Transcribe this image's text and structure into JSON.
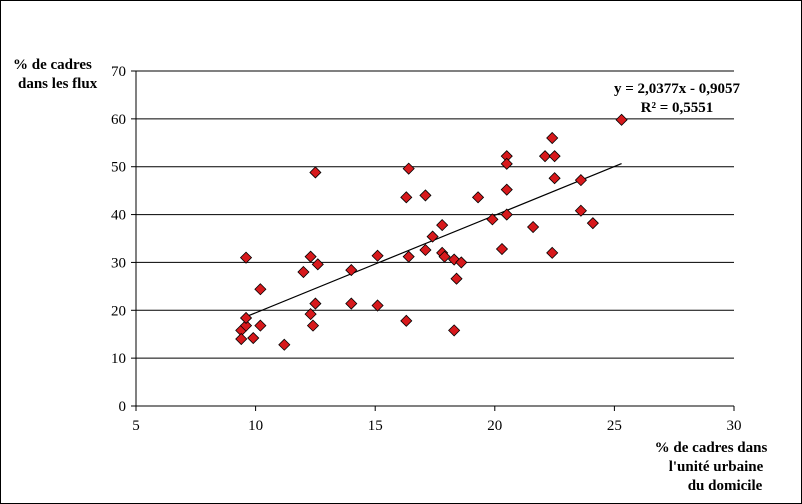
{
  "chart_data": {
    "type": "scatter",
    "ylabel_lines": [
      "% de cadres",
      "dans les flux"
    ],
    "xlabel_lines": [
      "% de cadres dans",
      "l'unité urbaine",
      "du domicile"
    ],
    "xlim": [
      5,
      30
    ],
    "ylim": [
      0,
      70
    ],
    "x_ticks": [
      5,
      10,
      15,
      20,
      25,
      30
    ],
    "y_ticks": [
      0,
      10,
      20,
      30,
      40,
      50,
      60,
      70
    ],
    "grid": "horizontal",
    "marker_color": "#d7191c",
    "equation": "y = 2,0377x - 0,9057",
    "r2": "R² = 0,5551",
    "trendline": {
      "slope": 2.0377,
      "intercept": -0.9057,
      "x_range": [
        9.6,
        25.3
      ]
    },
    "points": [
      [
        9.4,
        15.8
      ],
      [
        9.4,
        14.0
      ],
      [
        9.6,
        16.8
      ],
      [
        9.6,
        18.4
      ],
      [
        9.6,
        31.0
      ],
      [
        9.9,
        14.2
      ],
      [
        10.2,
        24.4
      ],
      [
        10.2,
        16.8
      ],
      [
        11.2,
        12.8
      ],
      [
        12.0,
        28.0
      ],
      [
        12.3,
        31.2
      ],
      [
        12.3,
        19.2
      ],
      [
        12.4,
        16.8
      ],
      [
        12.5,
        48.8
      ],
      [
        12.5,
        21.4
      ],
      [
        12.6,
        29.6
      ],
      [
        14.0,
        28.4
      ],
      [
        14.0,
        21.4
      ],
      [
        15.1,
        31.4
      ],
      [
        15.1,
        21.0
      ],
      [
        16.3,
        43.6
      ],
      [
        16.3,
        17.8
      ],
      [
        16.4,
        49.6
      ],
      [
        16.4,
        31.2
      ],
      [
        17.1,
        44.0
      ],
      [
        17.1,
        32.6
      ],
      [
        17.4,
        35.4
      ],
      [
        17.8,
        37.8
      ],
      [
        17.8,
        32.0
      ],
      [
        17.9,
        31.2
      ],
      [
        18.3,
        30.6
      ],
      [
        18.4,
        26.6
      ],
      [
        18.3,
        15.8
      ],
      [
        18.6,
        30.0
      ],
      [
        19.3,
        43.6
      ],
      [
        19.9,
        39.0
      ],
      [
        20.3,
        32.8
      ],
      [
        20.5,
        52.2
      ],
      [
        20.5,
        50.6
      ],
      [
        20.5,
        45.2
      ],
      [
        20.5,
        40.0
      ],
      [
        21.6,
        37.4
      ],
      [
        22.1,
        52.2
      ],
      [
        22.4,
        56.0
      ],
      [
        22.5,
        52.2
      ],
      [
        22.5,
        47.6
      ],
      [
        22.4,
        32.0
      ],
      [
        23.6,
        47.2
      ],
      [
        23.6,
        40.8
      ],
      [
        24.1,
        38.2
      ],
      [
        25.3,
        59.8
      ]
    ]
  }
}
